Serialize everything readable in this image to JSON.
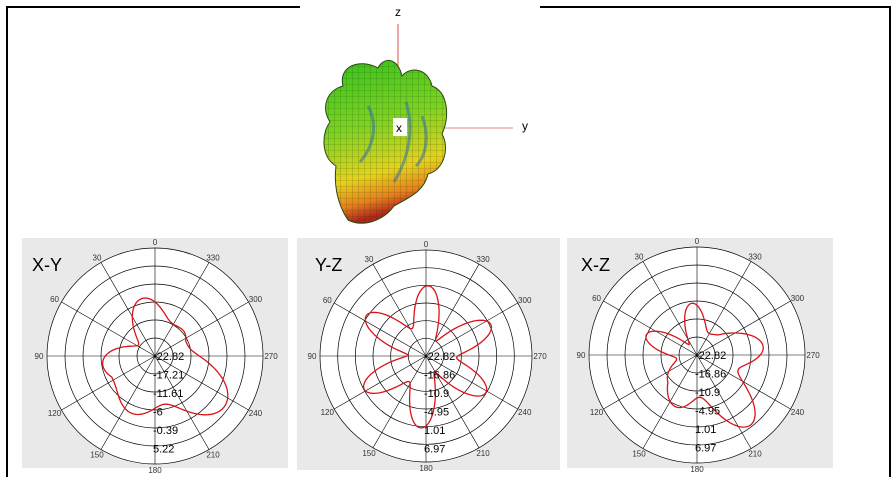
{
  "axes3d": {
    "z": "z",
    "x": "x",
    "y": "y"
  },
  "panels": [
    {
      "title": "X-Y",
      "angles": [
        "0",
        "30",
        "60",
        "90",
        "120",
        "150",
        "180",
        "210",
        "240",
        "270",
        "300",
        "330"
      ],
      "radial_labels": [
        "-22.82",
        "-17.21",
        "-11.61",
        "-6",
        "-0.39",
        "5.22"
      ]
    },
    {
      "title": "Y-Z",
      "angles": [
        "0",
        "30",
        "60",
        "90",
        "120",
        "150",
        "180",
        "210",
        "240",
        "270",
        "300",
        "330"
      ],
      "radial_labels": [
        "-22.82",
        "-16.86",
        "-10.9",
        "-4.95",
        "1.01",
        "6.97"
      ]
    },
    {
      "title": "X-Z",
      "angles": [
        "0",
        "30",
        "60",
        "90",
        "120",
        "150",
        "180",
        "210",
        "240",
        "270",
        "300",
        "330"
      ],
      "radial_labels": [
        "-22.82",
        "-16.86",
        "-10.9",
        "-4.95",
        "1.01",
        "6.97"
      ]
    }
  ],
  "colors": {
    "pattern": "#d8141a",
    "grid": "#000000",
    "panel_bg": "#e9e9e9",
    "axis_z": "#d9534f"
  }
}
